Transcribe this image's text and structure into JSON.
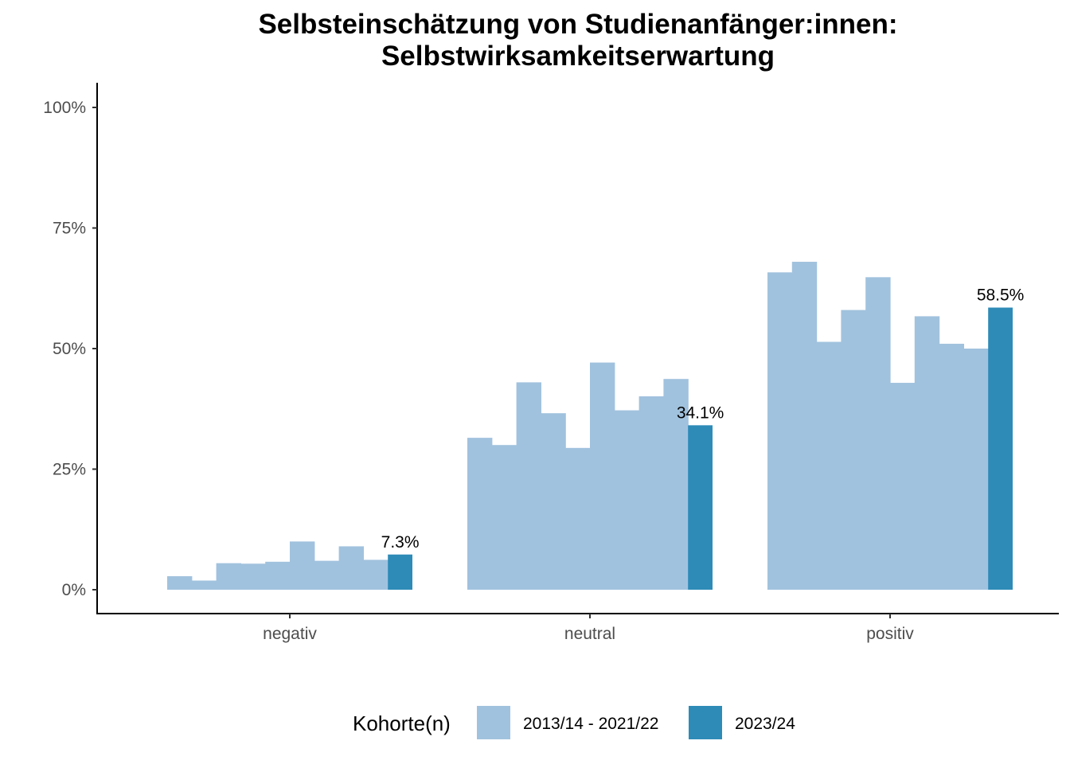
{
  "chart_data": {
    "type": "bar",
    "title": "Selbsteinschätzung von Studienanfänger:innen:",
    "subtitle": "Selbstwirksamkeitserwartung",
    "xlabel": "",
    "ylabel": "",
    "ylim": [
      0,
      1.05
    ],
    "yticks": [
      0,
      0.25,
      0.5,
      0.75,
      1.0
    ],
    "ytick_labels": [
      "0%",
      "25%",
      "50%",
      "75%",
      "100%"
    ],
    "grid": false,
    "categories": [
      "negativ",
      "neutral",
      "positiv"
    ],
    "series": [
      {
        "name": "2013/14 - 2021/22",
        "color": "#a1c2de",
        "cohort_values": [
          [
            0.028,
            0.019,
            0.055,
            0.054,
            0.058,
            0.1,
            0.06,
            0.09,
            0.062
          ],
          [
            0.315,
            0.3,
            0.43,
            0.366,
            0.294,
            0.471,
            0.372,
            0.401,
            0.437
          ],
          [
            0.658,
            0.68,
            0.514,
            0.58,
            0.648,
            0.429,
            0.567,
            0.51,
            0.5
          ]
        ]
      },
      {
        "name": "2023/24",
        "color": "#2e8bb8",
        "values": [
          0.073,
          0.341,
          0.585
        ],
        "labels": [
          "7.3%",
          "34.1%",
          "58.5%"
        ]
      }
    ],
    "legend": {
      "title": "Kohorte(n)",
      "position": "bottom"
    }
  }
}
